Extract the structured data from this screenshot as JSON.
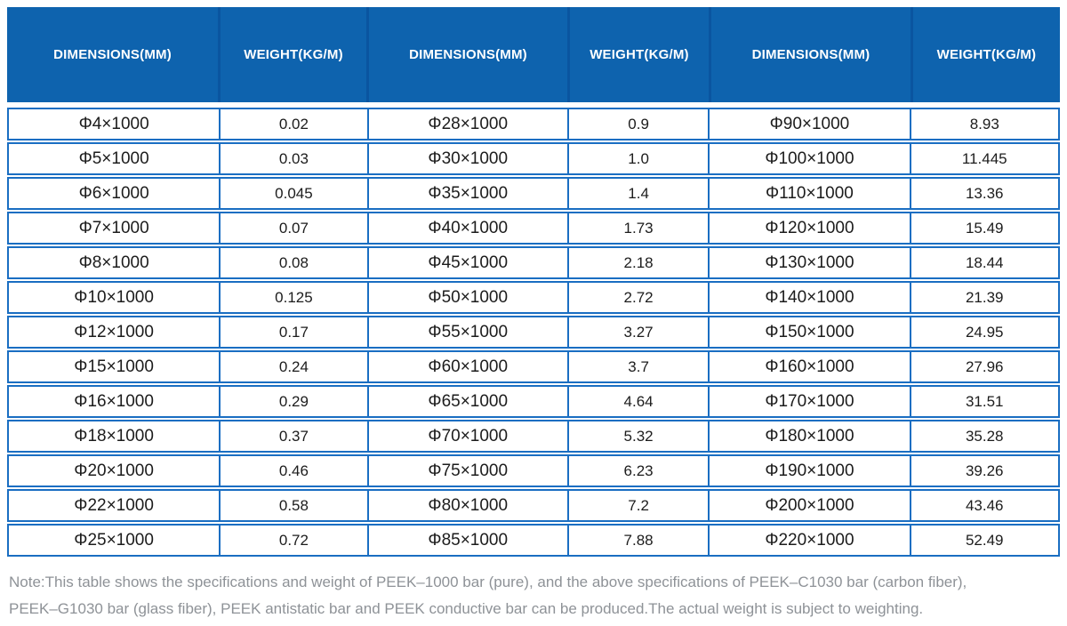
{
  "colors": {
    "header_bg": "#0e63ae",
    "header_separator": "#0a55a0",
    "row_border": "#1a6ec2",
    "body_text": "#1c1c1c",
    "note_text": "#8e9297"
  },
  "table": {
    "header": [
      "DIMENSIONS(MM)",
      "WEIGHT(KG/M)",
      "DIMENSIONS(MM)",
      "WEIGHT(KG/M)",
      "DIMENSIONS(MM)",
      "WEIGHT(KG/M)"
    ],
    "rows": [
      [
        "Φ4×1000",
        "0.02",
        "Φ28×1000",
        "0.9",
        "Φ90×1000",
        "8.93"
      ],
      [
        "Φ5×1000",
        "0.03",
        "Φ30×1000",
        "1.0",
        "Φ100×1000",
        "11.445"
      ],
      [
        "Φ6×1000",
        "0.045",
        "Φ35×1000",
        "1.4",
        "Φ110×1000",
        "13.36"
      ],
      [
        "Φ7×1000",
        "0.07",
        "Φ40×1000",
        "1.73",
        "Φ120×1000",
        "15.49"
      ],
      [
        "Φ8×1000",
        "0.08",
        "Φ45×1000",
        "2.18",
        "Φ130×1000",
        "18.44"
      ],
      [
        "Φ10×1000",
        "0.125",
        "Φ50×1000",
        "2.72",
        "Φ140×1000",
        "21.39"
      ],
      [
        "Φ12×1000",
        "0.17",
        "Φ55×1000",
        "3.27",
        "Φ150×1000",
        "24.95"
      ],
      [
        "Φ15×1000",
        "0.24",
        "Φ60×1000",
        "3.7",
        "Φ160×1000",
        "27.96"
      ],
      [
        "Φ16×1000",
        "0.29",
        "Φ65×1000",
        "4.64",
        "Φ170×1000",
        "31.51"
      ],
      [
        "Φ18×1000",
        "0.37",
        "Φ70×1000",
        "5.32",
        "Φ180×1000",
        "35.28"
      ],
      [
        "Φ20×1000",
        "0.46",
        "Φ75×1000",
        "6.23",
        "Φ190×1000",
        "39.26"
      ],
      [
        "Φ22×1000",
        "0.58",
        "Φ80×1000",
        "7.2",
        "Φ200×1000",
        "43.46"
      ],
      [
        "Φ25×1000",
        "0.72",
        "Φ85×1000",
        "7.88",
        "Φ220×1000",
        "52.49"
      ]
    ]
  },
  "note": {
    "lines": [
      "Note:This table shows the specifications and weight of PEEK–1000 bar (pure), and the above specifications of PEEK–C1030 bar (carbon fiber),",
      "PEEK–G1030 bar (glass fiber), PEEK antistatic bar and PEEK conductive bar can be produced.The actual weight is subject to weighting."
    ]
  }
}
